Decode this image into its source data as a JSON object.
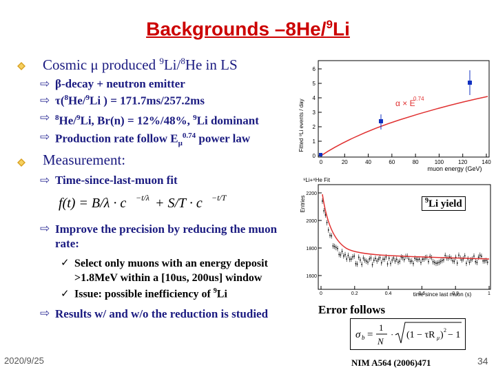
{
  "title": {
    "pre": "Backgrounds –8",
    "mid": "He/",
    "sup2": "9",
    "post": "Li"
  },
  "bullet1": {
    "text_a": "Cosmic μ produced ",
    "sup1": "9",
    "text_b": "Li/",
    "sup2": "8",
    "text_c": "He in LS"
  },
  "sub1": [
    {
      "text": "β-decay + neutron emitter"
    },
    {
      "a": "τ(",
      "s1": "8",
      "b": "He/",
      "s2": "9",
      "c": "Li ) = 171.7ms/257.2ms"
    },
    {
      "s1": "8",
      "a": "He/",
      "s2": "9",
      "b": "Li, Br(n) = 12%/48%, ",
      "s3": "9",
      "c": "Li dominant"
    },
    {
      "a": "Production rate follow E",
      "sub": "μ",
      "sup": "0.74",
      "b": " power law"
    }
  ],
  "bullet2": {
    "text": "Measurement:"
  },
  "sub2": [
    {
      "text": "Time-since-last-muon fit"
    },
    {
      "text": "Improve the precision by reducing the muon rate:"
    },
    {
      "text": "Results w/ and w/o the reduction is studied"
    }
  ],
  "checks": [
    {
      "text": "Select only muons with an energy deposit >1.8MeV within a [10us, 200us] window"
    },
    {
      "a": "Issue:  possible inefficiency of ",
      "s": "9",
      "b": "Li"
    }
  ],
  "formula_fit": "f(t) = B/λ · c⁻ᵗᐟˡ + S/T · c⁻ᵗᐟᵀ",
  "yield_label": {
    "sup": "9",
    "text": "Li yield"
  },
  "error_follows": "Error follows",
  "nim_ref": "NIM A564 (2006)471",
  "date": "2020/9/25",
  "page_number": "34",
  "plot1": {
    "ylabel": "Fitted ⁹Li events / day",
    "xlabel": "muon energy (GeV)",
    "annotation": "α × E",
    "annotation_sup": "0.74",
    "xticks": [
      "0",
      "20",
      "40",
      "60",
      "80",
      "100",
      "120",
      "140"
    ],
    "yticks": [
      "0",
      "1",
      "2",
      "3",
      "4",
      "5",
      "6"
    ],
    "colors": {
      "curve": "#e03030",
      "marker": "#1030c0",
      "annot": "#e03030"
    }
  },
  "plot2": {
    "title": "⁹Li+⁸He Fit",
    "ylabel": "Entries",
    "xlabel": "time since last muon (s)",
    "xticks": [
      "0",
      "0.2",
      "0.4",
      "0.6",
      "0.8",
      "1"
    ],
    "yticks": [
      "1600",
      "1800",
      "2000",
      "2200"
    ],
    "colors": {
      "curve": "#e03030",
      "marker": "#000000"
    }
  }
}
